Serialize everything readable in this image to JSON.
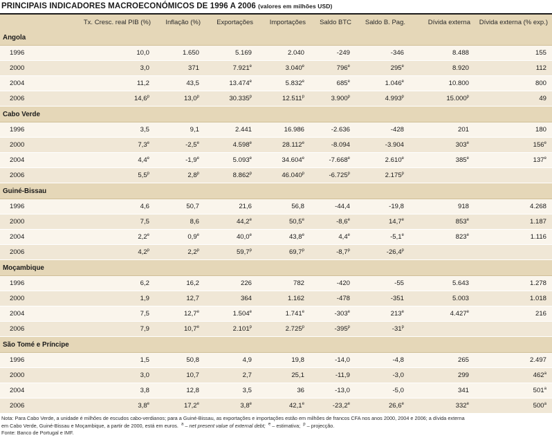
{
  "title": "PRINCIPAIS INDICADORES MACROECONÓMICOS DE 1996 A 2006",
  "subtitle": "(valores em milhões USD)",
  "columns": [
    "",
    "Tx. Cresc. real PIB (%)",
    "Inflação (%)",
    "Exportações",
    "Importações",
    "Saldo BTC",
    "Saldo B. Pag.",
    "Dívida externa",
    "Dívida externa (% exp.)"
  ],
  "groups": [
    {
      "name": "Angola",
      "rows": [
        [
          "1996",
          "10,0",
          "1.650",
          "5.169",
          "2.040",
          "-249",
          "-346",
          "8.488",
          "155"
        ],
        [
          "2000",
          "3,0",
          "371",
          "7.921",
          "3.040",
          "796",
          "295",
          "8.920",
          "112"
        ],
        [
          "2004",
          "11,2",
          "43,5",
          "13.474",
          "5.832",
          "685",
          "1.046",
          "10.800",
          "800"
        ],
        [
          "2006",
          "14,6",
          "13,0",
          "30.335",
          "12.511",
          "3.900",
          "4.993",
          "15.000",
          "49"
        ]
      ]
    },
    {
      "name": "Cabo Verde",
      "rows": [
        [
          "1996",
          "3,5",
          "9,1",
          "2.441",
          "16.986",
          "-2.636",
          "-428",
          "201",
          "180"
        ],
        [
          "2000",
          "7,3",
          "-2,5",
          "4.598",
          "28.112",
          "-8.094",
          "-3.904",
          "303",
          "156"
        ],
        [
          "2004",
          "4,4",
          "-1,9",
          "5.093",
          "34.604",
          "-7.668",
          "2.610",
          "385",
          "137"
        ],
        [
          "2006",
          "5,5",
          "2,8",
          "8.862",
          "46.040",
          "-6.725",
          "2.175",
          "",
          ""
        ]
      ]
    },
    {
      "name": "Guiné-Bissau",
      "rows": [
        [
          "1996",
          "4,6",
          "50,7",
          "21,6",
          "56,8",
          "-44,4",
          "-19,8",
          "918",
          "4.268"
        ],
        [
          "2000",
          "7,5",
          "8,6",
          "44,2",
          "50,5",
          "-8,6",
          "14,7",
          "853",
          "1.187"
        ],
        [
          "2004",
          "2,2",
          "0,9",
          "40,0",
          "43,8",
          "4,4",
          "-5,1",
          "823",
          "1.116"
        ],
        [
          "2006",
          "4,2",
          "2,2",
          "59,7",
          "69,7",
          "-8,7",
          "-26,4",
          "",
          ""
        ]
      ]
    },
    {
      "name": "Moçambique",
      "rows": [
        [
          "1996",
          "6,2",
          "16,2",
          "226",
          "782",
          "-420",
          "-55",
          "5.643",
          "1.278"
        ],
        [
          "2000",
          "1,9",
          "12,7",
          "364",
          "1.162",
          "-478",
          "-351",
          "5.003",
          "1.018"
        ],
        [
          "2004",
          "7,5",
          "12,7",
          "1.504",
          "1.741",
          "-303",
          "213",
          "4.427",
          "216"
        ],
        [
          "2006",
          "7,9",
          "10,7",
          "2.101",
          "2.725",
          "-395",
          "-31",
          "",
          ""
        ]
      ]
    },
    {
      "name": "São Tomé e Príncipe",
      "rows": [
        [
          "1996",
          "1,5",
          "50,8",
          "4,9",
          "19,8",
          "-14,0",
          "-4,8",
          "265",
          "2.497"
        ],
        [
          "2000",
          "3,0",
          "10,7",
          "2,7",
          "25,1",
          "-11,9",
          "-3,0",
          "299",
          "462"
        ],
        [
          "2004",
          "3,8",
          "12,8",
          "3,5",
          "36",
          "-13,0",
          "-5,0",
          "341",
          "501"
        ],
        [
          "2006",
          "3,8",
          "17,2",
          "3,8",
          "42,1",
          "-23,2",
          "26,6",
          "332",
          "500"
        ]
      ]
    }
  ],
  "sups": [
    [
      [
        "",
        "",
        "",
        "",
        "",
        "",
        "",
        "",
        ""
      ],
      [
        "",
        "",
        "",
        "e",
        "e",
        "e",
        "e",
        "",
        ""
      ],
      [
        "",
        "",
        "",
        "e",
        "e",
        "e",
        "e",
        "",
        ""
      ],
      [
        "",
        "p",
        "p",
        "p",
        "p",
        "p",
        "p",
        "p",
        ""
      ]
    ],
    [
      [
        "",
        "",
        "",
        "",
        "",
        "",
        "",
        "",
        ""
      ],
      [
        "",
        "e",
        "e",
        "e",
        "e",
        "",
        "",
        "e",
        "e"
      ],
      [
        "",
        "e",
        "e",
        "e",
        "e",
        "e",
        "e",
        "e",
        "e"
      ],
      [
        "",
        "p",
        "p",
        "p",
        "p",
        "p",
        "p",
        "",
        ""
      ]
    ],
    [
      [
        "",
        "",
        "",
        "",
        "",
        "",
        "",
        "",
        ""
      ],
      [
        "",
        "",
        "",
        "e",
        "e",
        "e",
        "e",
        "e",
        ""
      ],
      [
        "",
        "e",
        "e",
        "e",
        "e",
        "e",
        "e",
        "e",
        ""
      ],
      [
        "",
        "p",
        "p",
        "p",
        "p",
        "p",
        "p",
        "",
        ""
      ]
    ],
    [
      [
        "",
        "",
        "",
        "",
        "",
        "",
        "",
        "",
        ""
      ],
      [
        "",
        "",
        "",
        "",
        "",
        "",
        "",
        "",
        ""
      ],
      [
        "",
        "",
        "e",
        "e",
        "e",
        "e",
        "e",
        "e",
        ""
      ],
      [
        "",
        "",
        "e",
        "p",
        "p",
        "p",
        "p",
        "",
        ""
      ]
    ],
    [
      [
        "",
        "",
        "",
        "",
        "",
        "",
        "",
        "",
        ""
      ],
      [
        "",
        "",
        "",
        "",
        "",
        "",
        "",
        "",
        "a"
      ],
      [
        "",
        "",
        "",
        "",
        "",
        "",
        "",
        "",
        "a"
      ],
      [
        "",
        "e",
        "e",
        "e",
        "e",
        "e",
        "e",
        "e",
        "a"
      ]
    ]
  ],
  "notes": {
    "line1": "Nota: Para Cabo Verde, a unidade é milhões de escudos cabo-verdianos; para a Guiné-Bissau, as exportações e importações estão em milhões de francos CFA nos anos 2000, 2004 e 2006; a dívida externa",
    "line2a": "em Cabo Verde, Guiné-Bissau e Moçambique, a partir de 2000, está em euros.",
    "sup_a": "a",
    "npv": " – net present value of external debt;",
    "sup_e": "e",
    "estim": " – estimativa;",
    "sup_p": "p",
    "proj": " – projecção.",
    "source": "Fonte: Banco de Portugal e IMF."
  }
}
